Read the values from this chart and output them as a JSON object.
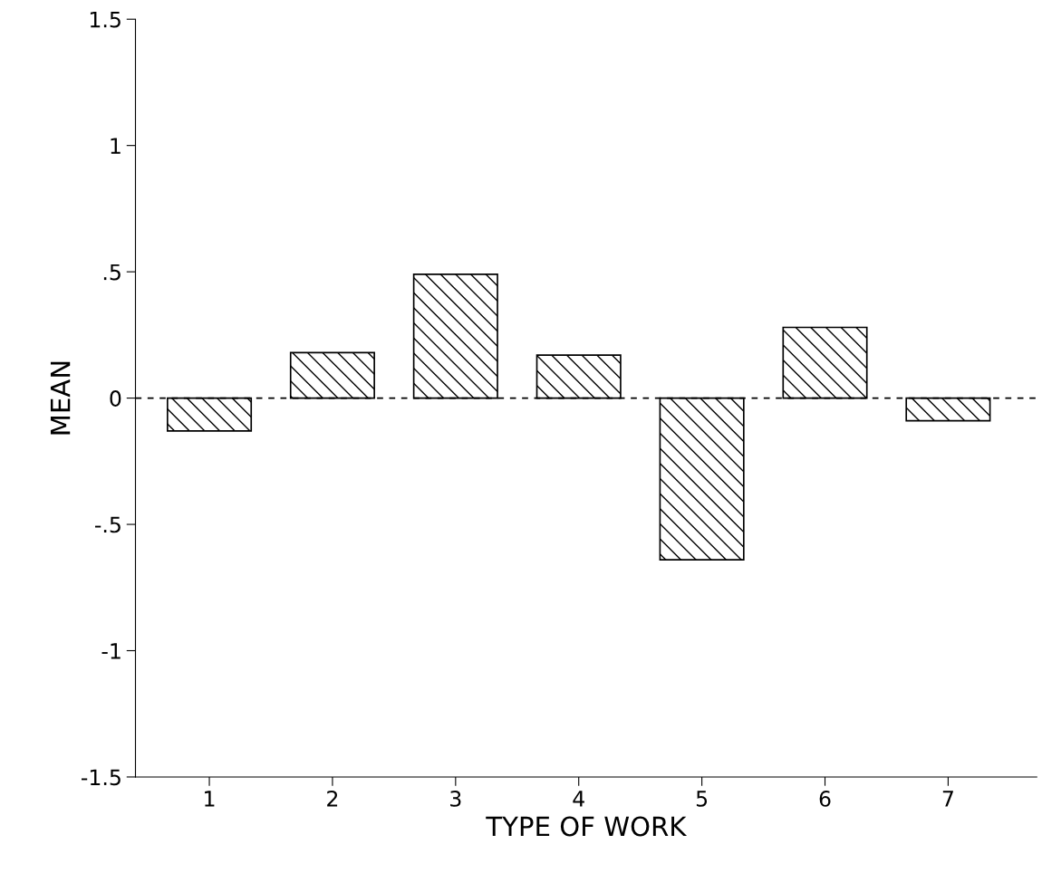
{
  "chart_data": {
    "type": "bar",
    "xlabel": "TYPE OF WORK",
    "ylabel": "MEAN",
    "categories": [
      "1",
      "2",
      "3",
      "4",
      "5",
      "6",
      "7"
    ],
    "values": [
      -0.13,
      0.18,
      0.49,
      0.17,
      -0.64,
      0.28,
      -0.09
    ],
    "color": "#000000",
    "ylim": [
      -1.5,
      1.5
    ],
    "yticks": [
      {
        "value": -1.5,
        "label": "-1.5"
      },
      -1,
      {
        "value": -0.5,
        "label": "-.5"
      },
      0,
      {
        "value": 0.5,
        "label": ".5"
      },
      1,
      1.5
    ],
    "ref_lines": [
      {
        "axis": "y",
        "value": 0,
        "color": "#000000",
        "line_style": "dashed"
      }
    ],
    "grid": false
  }
}
